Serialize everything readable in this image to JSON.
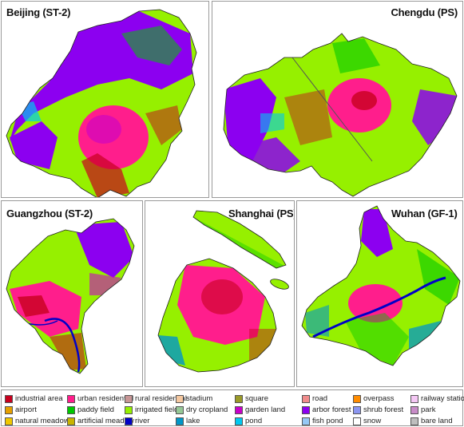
{
  "panels": [
    {
      "id": "beijing",
      "title": "Beijing (ST-2)"
    },
    {
      "id": "chengdu",
      "title": "Chengdu (PS)"
    },
    {
      "id": "guangzhou",
      "title": "Guangzhou (ST-2)"
    },
    {
      "id": "shanghai",
      "title": "Shanghai (PS)"
    },
    {
      "id": "wuhan",
      "title": "Wuhan (GF-1)"
    }
  ],
  "legend": [
    {
      "label": "industrial area",
      "color": "#c8001e"
    },
    {
      "label": "urban residential",
      "color": "#ff1e8c"
    },
    {
      "label": "rural residential",
      "color": "#c89696"
    },
    {
      "label": "stadium",
      "color": "#f5c8a0"
    },
    {
      "label": "square",
      "color": "#9a9a28"
    },
    {
      "label": "road",
      "color": "#f08c8c"
    },
    {
      "label": "overpass",
      "color": "#ff8c00"
    },
    {
      "label": "railway station",
      "color": "#f5c8f5"
    },
    {
      "label": "airport",
      "color": "#e6a000"
    },
    {
      "label": "paddy field",
      "color": "#00c800"
    },
    {
      "label": "irrigated field",
      "color": "#96f000"
    },
    {
      "label": "dry cropland",
      "color": "#96c896"
    },
    {
      "label": "garden land",
      "color": "#c800c8"
    },
    {
      "label": "arbor forest",
      "color": "#8c00f0"
    },
    {
      "label": "shrub forest",
      "color": "#8c96f0"
    },
    {
      "label": "park",
      "color": "#c88cc8"
    },
    {
      "label": "natural meadow",
      "color": "#f0c800"
    },
    {
      "label": "artificial meadow",
      "color": "#c8b400"
    },
    {
      "label": "river",
      "color": "#0000c8"
    },
    {
      "label": "lake",
      "color": "#0096c8"
    },
    {
      "label": "pond",
      "color": "#00c8f0"
    },
    {
      "label": "fish pond",
      "color": "#96c8f5"
    },
    {
      "label": "snow",
      "color": "#ffffff"
    },
    {
      "label": "bare land",
      "color": "#bebebe"
    }
  ]
}
